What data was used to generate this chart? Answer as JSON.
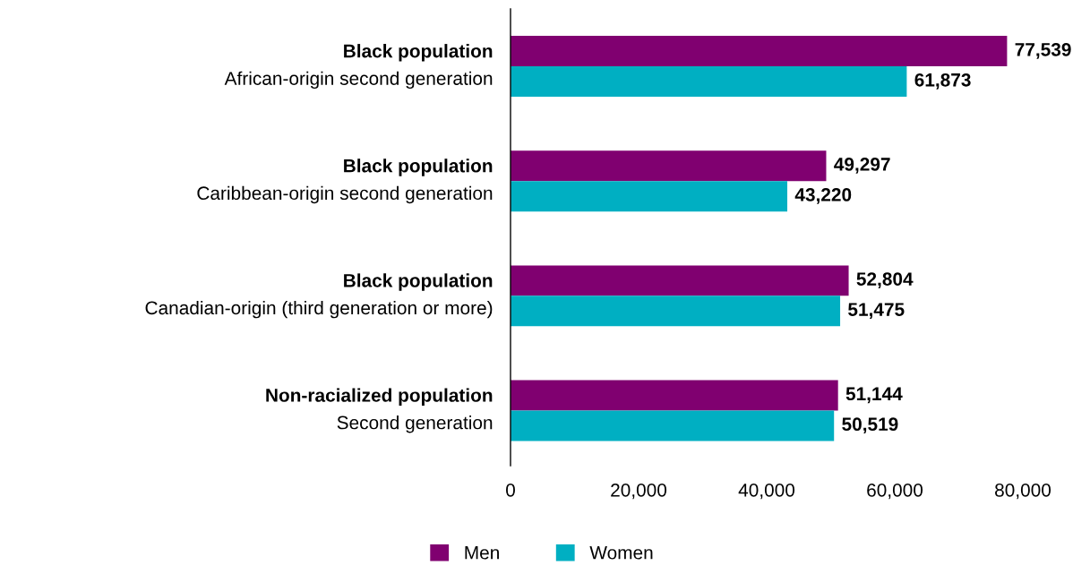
{
  "chart_data": {
    "type": "bar",
    "orientation": "horizontal",
    "categories": [
      "Black population\nAfrican-origin second generation",
      "Black population\nCaribbean-origin second generation",
      "Black population\nCanadian-origin (third generation or more)",
      "Non-racialized population\nSecond generation"
    ],
    "series": [
      {
        "name": "Men",
        "color": "#800070",
        "values": [
          77539,
          49297,
          52804,
          51144
        ],
        "value_labels": [
          "77,539",
          "49,297",
          "52,804",
          "51,144"
        ]
      },
      {
        "name": "Women",
        "color": "#00afc2",
        "values": [
          61873,
          43220,
          51475,
          50519
        ],
        "value_labels": [
          "61,873",
          "43,220",
          "51,475",
          "50,519"
        ]
      }
    ],
    "xlim": [
      0,
      80000
    ],
    "xticks": [
      0,
      {
        "value": 20000,
        "label": "20,000"
      },
      {
        "value": 40000,
        "label": "40,000"
      },
      {
        "value": 60000,
        "label": "60,000"
      },
      {
        "value": 80000,
        "label": "80,000"
      }
    ],
    "grid": false,
    "legend": "bottom"
  }
}
